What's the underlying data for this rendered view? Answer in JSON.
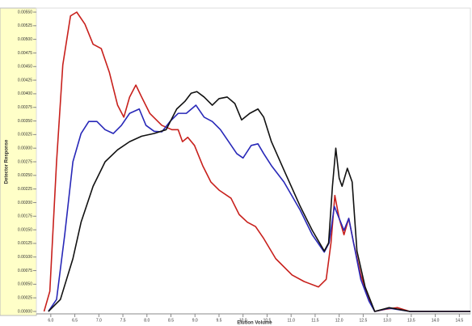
{
  "chart_data": {
    "type": "line",
    "x_label": "Elution Volume",
    "y_label": "Detector Response",
    "xlim": [
      5.7,
      14.73
    ],
    "ylim": [
      0,
      0.0055
    ],
    "xticks": [
      {
        "value": 6,
        "label": "6.0"
      },
      6.5,
      {
        "value": 7,
        "label": "7.0"
      },
      7.5,
      {
        "value": 8,
        "label": "8.0"
      },
      8.5,
      {
        "value": 9,
        "label": "9.0"
      },
      9.5,
      {
        "value": 10,
        "label": "10.0"
      },
      10.5,
      {
        "value": 11,
        "label": "11.0"
      },
      11.5,
      {
        "value": 12,
        "label": "12.0"
      },
      12.5,
      {
        "value": 13,
        "label": "13.0"
      },
      13.5,
      {
        "value": 14,
        "label": "14.0"
      },
      14.5
    ],
    "yticks": [
      {
        "value": 0,
        "label": "0.00000"
      },
      0.00025,
      {
        "value": 0.0005,
        "label": "0.00050"
      },
      0.00075,
      {
        "value": 0.001,
        "label": "0.00100"
      },
      0.00125,
      {
        "value": 0.0015,
        "label": "0.00150"
      },
      0.00175,
      {
        "value": 0.002,
        "label": "0.00200"
      },
      0.00225,
      {
        "value": 0.0025,
        "label": "0.00250"
      },
      0.00275,
      {
        "value": 0.003,
        "label": "0.00300"
      },
      0.00325,
      {
        "value": 0.0035,
        "label": "0.00350"
      },
      0.00375,
      {
        "value": 0.004,
        "label": "0.00400"
      },
      0.00425,
      {
        "value": 0.0045,
        "label": "0.00450"
      },
      0.00475,
      {
        "value": 0.005,
        "label": "0.00500"
      },
      0.00525,
      {
        "value": 0.0055,
        "label": "0.00550"
      }
    ],
    "series": [
      {
        "color": "#c8201c",
        "x": [
          5.86,
          5.98,
          6.12,
          6.25,
          6.41,
          6.54,
          6.71,
          6.88,
          7.05,
          7.22,
          7.39,
          7.52,
          7.64,
          7.77,
          7.89,
          8.06,
          8.31,
          8.52,
          8.65,
          8.74,
          8.85,
          8.99,
          9.16,
          9.33,
          9.5,
          9.75,
          9.92,
          10.09,
          10.26,
          10.43,
          10.68,
          11.02,
          11.27,
          11.57,
          11.73,
          11.83,
          11.91,
          12.0,
          12.1,
          12.2,
          12.3,
          12.45,
          12.62,
          12.74,
          12.96,
          13.21,
          13.47,
          13.89,
          14.31,
          14.73
        ],
        "values": [
          0,
          0.00037,
          0.00275,
          0.00453,
          0.00543,
          0.0055,
          0.00528,
          0.00491,
          0.00483,
          0.00439,
          0.00379,
          0.00357,
          0.00394,
          0.00416,
          0.00394,
          0.00364,
          0.00342,
          0.00334,
          0.00334,
          0.00312,
          0.0032,
          0.00305,
          0.00268,
          0.00238,
          0.00223,
          0.00208,
          0.00178,
          0.00164,
          0.00156,
          0.00134,
          0.00097,
          0.00067,
          0.00055,
          0.00045,
          0.00059,
          0.00126,
          0.00213,
          0.00171,
          0.00141,
          0.00171,
          0.00126,
          0.00067,
          0.00022,
          0,
          4e-05,
          7e-05,
          0,
          0,
          0,
          0
        ]
      },
      {
        "color": "#2828b8",
        "x": [
          5.95,
          6.12,
          6.29,
          6.46,
          6.63,
          6.79,
          6.96,
          7.13,
          7.3,
          7.47,
          7.64,
          7.84,
          7.98,
          8.15,
          8.31,
          8.48,
          8.65,
          8.82,
          9.02,
          9.19,
          9.36,
          9.53,
          9.7,
          9.87,
          10.0,
          10.17,
          10.31,
          10.43,
          10.59,
          10.85,
          11.19,
          11.44,
          11.69,
          11.79,
          11.9,
          12.0,
          12.1,
          12.2,
          12.3,
          12.45,
          12.62,
          12.74,
          13.04,
          13.47,
          14.73
        ],
        "values": [
          0,
          0.00022,
          0.00141,
          0.00275,
          0.00327,
          0.00349,
          0.00349,
          0.00334,
          0.00327,
          0.00342,
          0.00364,
          0.00372,
          0.00342,
          0.00331,
          0.0033,
          0.00349,
          0.00364,
          0.00364,
          0.00379,
          0.00357,
          0.00349,
          0.00334,
          0.00312,
          0.0029,
          0.00282,
          0.00305,
          0.00308,
          0.0029,
          0.00268,
          0.00238,
          0.00186,
          0.00141,
          0.00109,
          0.00126,
          0.00193,
          0.00171,
          0.00149,
          0.00171,
          0.00126,
          0.00059,
          0.00019,
          0,
          6e-05,
          0,
          0
        ]
      },
      {
        "color": "#111111",
        "x": [
          5.95,
          6.2,
          6.46,
          6.63,
          6.88,
          7.13,
          7.39,
          7.64,
          7.89,
          8.15,
          8.4,
          8.62,
          8.79,
          8.92,
          9.04,
          9.19,
          9.36,
          9.5,
          9.67,
          9.83,
          9.97,
          10.14,
          10.31,
          10.43,
          10.59,
          10.85,
          11.19,
          11.44,
          11.69,
          11.78,
          11.86,
          11.93,
          12.0,
          12.06,
          12.17,
          12.27,
          12.37,
          12.54,
          12.74,
          13.04,
          13.47,
          14.06,
          14.73
        ],
        "values": [
          0,
          0.00022,
          0.00097,
          0.00164,
          0.0023,
          0.00275,
          0.00297,
          0.00312,
          0.00322,
          0.00327,
          0.00334,
          0.00372,
          0.00386,
          0.00401,
          0.00404,
          0.00394,
          0.00379,
          0.00391,
          0.00394,
          0.00382,
          0.00352,
          0.00364,
          0.00372,
          0.00357,
          0.00312,
          0.0026,
          0.00193,
          0.00149,
          0.00111,
          0.00126,
          0.0023,
          0.003,
          0.00245,
          0.0023,
          0.00263,
          0.00238,
          0.00111,
          0.00045,
          0,
          7e-05,
          0,
          0,
          0
        ]
      }
    ]
  }
}
